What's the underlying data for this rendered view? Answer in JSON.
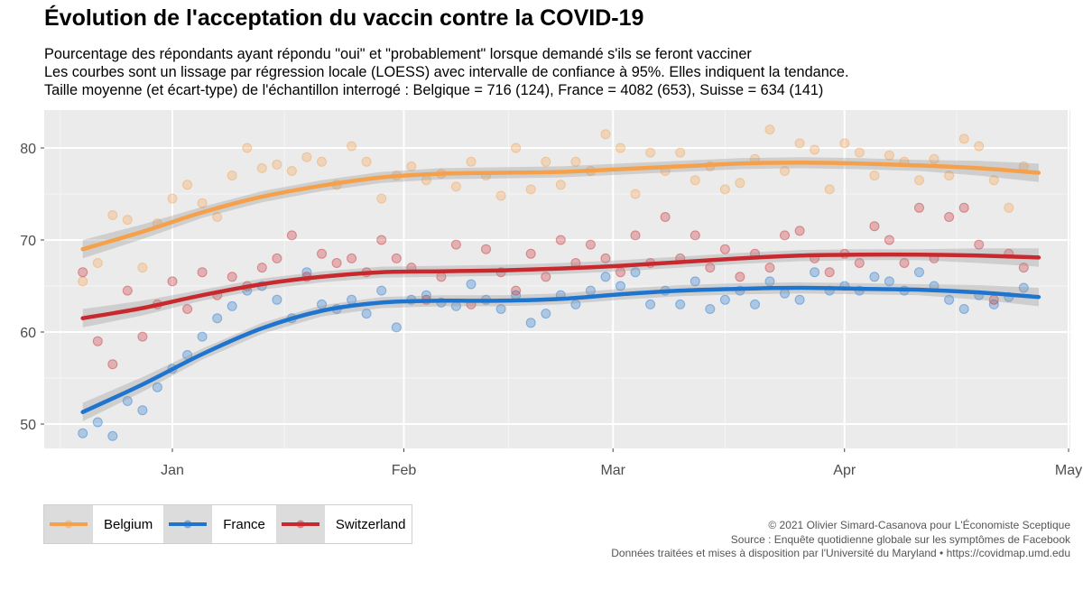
{
  "title": "Évolution de l'acceptation du vaccin contre la COVID-19",
  "subtitle": [
    "Pourcentage des répondants ayant répondu \"oui\" et \"probablement\" lorsque demandé s'ils se feront vacciner",
    "Les courbes sont un lissage par régression locale (LOESS) avec intervalle de confiance à 95%. Elles indiquent la tendance.",
    "Taille moyenne (et écart-type) de l'échantillon interrogé : Belgique = 716 (124), France = 4082 (653), Suisse = 634 (141)"
  ],
  "caption": [
    "© 2021 Olivier Simard-Casanova pour L'Économiste Sceptique",
    "Source : Enquête quotidienne globale sur les symptômes de Facebook",
    "Données traitées et mises à disposition par l'Université du Maryland • https://covidmap.umd.edu"
  ],
  "chart_data": {
    "type": "scatter",
    "x_unit": "date (2020-12 to 2021-05)",
    "x_ticks": [
      "Jan",
      "Feb",
      "Mar",
      "Apr",
      "May"
    ],
    "x_tick_dates": [
      "2021-01-01",
      "2021-02-01",
      "2021-03-01",
      "2021-04-01",
      "2021-05-01"
    ],
    "x_range": [
      "2020-12-16",
      "2021-05-01"
    ],
    "y_ticks": [
      50,
      60,
      70,
      80
    ],
    "ylim": [
      47,
      84.7
    ],
    "grid": true,
    "legend_position": "bottom-left",
    "series": [
      {
        "name": "Belgium",
        "color": "#F5A04A",
        "smooth": [
          [
            "2020-12-20",
            69.0
          ],
          [
            "2020-12-28",
            70.9
          ],
          [
            "2021-01-05",
            73.0
          ],
          [
            "2021-01-13",
            74.7
          ],
          [
            "2021-01-21",
            75.9
          ],
          [
            "2021-01-29",
            76.8
          ],
          [
            "2021-02-06",
            77.2
          ],
          [
            "2021-02-14",
            77.3
          ],
          [
            "2021-02-22",
            77.4
          ],
          [
            "2021-03-02",
            77.7
          ],
          [
            "2021-03-10",
            78.0
          ],
          [
            "2021-03-18",
            78.3
          ],
          [
            "2021-03-26",
            78.4
          ],
          [
            "2021-04-03",
            78.3
          ],
          [
            "2021-04-11",
            78.1
          ],
          [
            "2021-04-19",
            77.8
          ],
          [
            "2021-04-27",
            77.3
          ]
        ],
        "points": [
          [
            "2020-12-20",
            65.5
          ],
          [
            "2020-12-22",
            67.5
          ],
          [
            "2020-12-24",
            72.7
          ],
          [
            "2020-12-26",
            72.2
          ],
          [
            "2020-12-28",
            67.0
          ],
          [
            "2020-12-30",
            71.8
          ],
          [
            "2021-01-01",
            74.5
          ],
          [
            "2021-01-03",
            76.0
          ],
          [
            "2021-01-05",
            74.0
          ],
          [
            "2021-01-07",
            72.5
          ],
          [
            "2021-01-09",
            77.0
          ],
          [
            "2021-01-11",
            80.0
          ],
          [
            "2021-01-13",
            77.8
          ],
          [
            "2021-01-15",
            78.2
          ],
          [
            "2021-01-17",
            77.5
          ],
          [
            "2021-01-19",
            79.0
          ],
          [
            "2021-01-21",
            78.5
          ],
          [
            "2021-01-23",
            76.0
          ],
          [
            "2021-01-25",
            80.2
          ],
          [
            "2021-01-27",
            78.5
          ],
          [
            "2021-01-29",
            74.5
          ],
          [
            "2021-01-31",
            77.0
          ],
          [
            "2021-02-02",
            78.0
          ],
          [
            "2021-02-04",
            76.5
          ],
          [
            "2021-02-06",
            77.2
          ],
          [
            "2021-02-08",
            75.8
          ],
          [
            "2021-02-10",
            78.5
          ],
          [
            "2021-02-12",
            77.0
          ],
          [
            "2021-02-14",
            74.8
          ],
          [
            "2021-02-16",
            80.0
          ],
          [
            "2021-02-18",
            75.5
          ],
          [
            "2021-02-20",
            78.5
          ],
          [
            "2021-02-22",
            76.0
          ],
          [
            "2021-02-24",
            78.5
          ],
          [
            "2021-02-26",
            77.5
          ],
          [
            "2021-02-28",
            81.5
          ],
          [
            "2021-03-02",
            80.0
          ],
          [
            "2021-03-04",
            75.0
          ],
          [
            "2021-03-06",
            79.5
          ],
          [
            "2021-03-08",
            77.5
          ],
          [
            "2021-03-10",
            79.5
          ],
          [
            "2021-03-12",
            76.5
          ],
          [
            "2021-03-14",
            78.0
          ],
          [
            "2021-03-16",
            75.5
          ],
          [
            "2021-03-18",
            76.2
          ],
          [
            "2021-03-20",
            78.8
          ],
          [
            "2021-03-22",
            82.0
          ],
          [
            "2021-03-24",
            77.5
          ],
          [
            "2021-03-26",
            80.5
          ],
          [
            "2021-03-28",
            79.8
          ],
          [
            "2021-03-30",
            75.5
          ],
          [
            "2021-04-01",
            80.5
          ],
          [
            "2021-04-03",
            79.5
          ],
          [
            "2021-04-05",
            77.0
          ],
          [
            "2021-04-07",
            79.2
          ],
          [
            "2021-04-09",
            78.5
          ],
          [
            "2021-04-11",
            76.5
          ],
          [
            "2021-04-13",
            78.8
          ],
          [
            "2021-04-15",
            77.0
          ],
          [
            "2021-04-17",
            81.0
          ],
          [
            "2021-04-19",
            80.2
          ],
          [
            "2021-04-21",
            76.5
          ],
          [
            "2021-04-23",
            73.5
          ],
          [
            "2021-04-25",
            78.0
          ]
        ]
      },
      {
        "name": "France",
        "color": "#1F74CE",
        "smooth": [
          [
            "2020-12-20",
            51.3
          ],
          [
            "2020-12-28",
            54.3
          ],
          [
            "2021-01-05",
            57.6
          ],
          [
            "2021-01-13",
            60.4
          ],
          [
            "2021-01-21",
            62.3
          ],
          [
            "2021-01-29",
            63.2
          ],
          [
            "2021-02-06",
            63.4
          ],
          [
            "2021-02-14",
            63.4
          ],
          [
            "2021-02-22",
            63.6
          ],
          [
            "2021-03-02",
            64.1
          ],
          [
            "2021-03-10",
            64.5
          ],
          [
            "2021-03-18",
            64.7
          ],
          [
            "2021-03-26",
            64.8
          ],
          [
            "2021-04-03",
            64.7
          ],
          [
            "2021-04-11",
            64.6
          ],
          [
            "2021-04-19",
            64.3
          ],
          [
            "2021-04-27",
            63.8
          ]
        ],
        "points": [
          [
            "2020-12-20",
            49.0
          ],
          [
            "2020-12-22",
            50.2
          ],
          [
            "2020-12-24",
            48.7
          ],
          [
            "2020-12-26",
            52.5
          ],
          [
            "2020-12-28",
            51.5
          ],
          [
            "2020-12-30",
            54.0
          ],
          [
            "2021-01-01",
            56.0
          ],
          [
            "2021-01-03",
            57.5
          ],
          [
            "2021-01-05",
            59.5
          ],
          [
            "2021-01-07",
            61.5
          ],
          [
            "2021-01-09",
            62.8
          ],
          [
            "2021-01-11",
            64.5
          ],
          [
            "2021-01-13",
            65.0
          ],
          [
            "2021-01-15",
            63.5
          ],
          [
            "2021-01-17",
            61.5
          ],
          [
            "2021-01-19",
            66.5
          ],
          [
            "2021-01-21",
            63.0
          ],
          [
            "2021-01-23",
            62.5
          ],
          [
            "2021-01-25",
            63.5
          ],
          [
            "2021-01-27",
            62.0
          ],
          [
            "2021-01-29",
            64.5
          ],
          [
            "2021-01-31",
            60.5
          ],
          [
            "2021-02-02",
            63.5
          ],
          [
            "2021-02-04",
            64.0
          ],
          [
            "2021-02-06",
            63.2
          ],
          [
            "2021-02-08",
            62.8
          ],
          [
            "2021-02-10",
            65.2
          ],
          [
            "2021-02-12",
            63.5
          ],
          [
            "2021-02-14",
            62.5
          ],
          [
            "2021-02-16",
            64.0
          ],
          [
            "2021-02-18",
            61.0
          ],
          [
            "2021-02-20",
            62.0
          ],
          [
            "2021-02-22",
            64.0
          ],
          [
            "2021-02-24",
            63.0
          ],
          [
            "2021-02-26",
            64.5
          ],
          [
            "2021-02-28",
            66.0
          ],
          [
            "2021-03-02",
            65.0
          ],
          [
            "2021-03-04",
            66.5
          ],
          [
            "2021-03-06",
            63.0
          ],
          [
            "2021-03-08",
            64.5
          ],
          [
            "2021-03-10",
            63.0
          ],
          [
            "2021-03-12",
            65.5
          ],
          [
            "2021-03-14",
            62.5
          ],
          [
            "2021-03-16",
            63.5
          ],
          [
            "2021-03-18",
            64.5
          ],
          [
            "2021-03-20",
            63.0
          ],
          [
            "2021-03-22",
            65.5
          ],
          [
            "2021-03-24",
            64.2
          ],
          [
            "2021-03-26",
            63.5
          ],
          [
            "2021-03-28",
            66.5
          ],
          [
            "2021-03-30",
            64.5
          ],
          [
            "2021-04-01",
            65.0
          ],
          [
            "2021-04-03",
            64.5
          ],
          [
            "2021-04-05",
            66.0
          ],
          [
            "2021-04-07",
            65.5
          ],
          [
            "2021-04-09",
            64.5
          ],
          [
            "2021-04-11",
            66.5
          ],
          [
            "2021-04-13",
            65.0
          ],
          [
            "2021-04-15",
            63.5
          ],
          [
            "2021-04-17",
            62.5
          ],
          [
            "2021-04-19",
            64.0
          ],
          [
            "2021-04-21",
            63.0
          ],
          [
            "2021-04-23",
            63.8
          ],
          [
            "2021-04-25",
            64.8
          ]
        ]
      },
      {
        "name": "Switzerland",
        "color": "#C8292E",
        "smooth": [
          [
            "2020-12-20",
            61.5
          ],
          [
            "2020-12-28",
            62.6
          ],
          [
            "2021-01-05",
            64.0
          ],
          [
            "2021-01-13",
            65.2
          ],
          [
            "2021-01-21",
            66.0
          ],
          [
            "2021-01-29",
            66.5
          ],
          [
            "2021-02-06",
            66.6
          ],
          [
            "2021-02-14",
            66.7
          ],
          [
            "2021-02-22",
            66.9
          ],
          [
            "2021-03-02",
            67.2
          ],
          [
            "2021-03-10",
            67.6
          ],
          [
            "2021-03-18",
            68.0
          ],
          [
            "2021-03-26",
            68.3
          ],
          [
            "2021-04-03",
            68.4
          ],
          [
            "2021-04-11",
            68.4
          ],
          [
            "2021-04-19",
            68.3
          ],
          [
            "2021-04-27",
            68.1
          ]
        ],
        "points": [
          [
            "2020-12-20",
            66.5
          ],
          [
            "2020-12-22",
            59.0
          ],
          [
            "2020-12-24",
            56.5
          ],
          [
            "2020-12-26",
            64.5
          ],
          [
            "2020-12-28",
            59.5
          ],
          [
            "2020-12-30",
            63.0
          ],
          [
            "2021-01-01",
            65.5
          ],
          [
            "2021-01-03",
            62.5
          ],
          [
            "2021-01-05",
            66.5
          ],
          [
            "2021-01-07",
            64.0
          ],
          [
            "2021-01-09",
            66.0
          ],
          [
            "2021-01-11",
            65.0
          ],
          [
            "2021-01-13",
            67.0
          ],
          [
            "2021-01-15",
            68.0
          ],
          [
            "2021-01-17",
            70.5
          ],
          [
            "2021-01-19",
            66.0
          ],
          [
            "2021-01-21",
            68.5
          ],
          [
            "2021-01-23",
            67.5
          ],
          [
            "2021-01-25",
            68.0
          ],
          [
            "2021-01-27",
            66.5
          ],
          [
            "2021-01-29",
            70.0
          ],
          [
            "2021-01-31",
            68.0
          ],
          [
            "2021-02-02",
            67.0
          ],
          [
            "2021-02-04",
            63.5
          ],
          [
            "2021-02-06",
            66.0
          ],
          [
            "2021-02-08",
            69.5
          ],
          [
            "2021-02-10",
            63.0
          ],
          [
            "2021-02-12",
            69.0
          ],
          [
            "2021-02-14",
            66.5
          ],
          [
            "2021-02-16",
            64.5
          ],
          [
            "2021-02-18",
            68.5
          ],
          [
            "2021-02-20",
            66.0
          ],
          [
            "2021-02-22",
            70.0
          ],
          [
            "2021-02-24",
            67.5
          ],
          [
            "2021-02-26",
            69.5
          ],
          [
            "2021-02-28",
            68.0
          ],
          [
            "2021-03-02",
            66.5
          ],
          [
            "2021-03-04",
            70.5
          ],
          [
            "2021-03-06",
            67.5
          ],
          [
            "2021-03-08",
            72.5
          ],
          [
            "2021-03-10",
            68.0
          ],
          [
            "2021-03-12",
            70.5
          ],
          [
            "2021-03-14",
            67.0
          ],
          [
            "2021-03-16",
            69.0
          ],
          [
            "2021-03-18",
            66.0
          ],
          [
            "2021-03-20",
            68.5
          ],
          [
            "2021-03-22",
            67.0
          ],
          [
            "2021-03-24",
            70.5
          ],
          [
            "2021-03-26",
            71.0
          ],
          [
            "2021-03-28",
            68.0
          ],
          [
            "2021-03-30",
            66.5
          ],
          [
            "2021-04-01",
            68.5
          ],
          [
            "2021-04-03",
            67.5
          ],
          [
            "2021-04-05",
            71.5
          ],
          [
            "2021-04-07",
            70.0
          ],
          [
            "2021-04-09",
            67.5
          ],
          [
            "2021-04-11",
            73.5
          ],
          [
            "2021-04-13",
            68.0
          ],
          [
            "2021-04-15",
            72.5
          ],
          [
            "2021-04-17",
            73.5
          ],
          [
            "2021-04-19",
            69.5
          ],
          [
            "2021-04-21",
            63.5
          ],
          [
            "2021-04-23",
            68.5
          ],
          [
            "2021-04-25",
            67.0
          ]
        ]
      }
    ]
  }
}
